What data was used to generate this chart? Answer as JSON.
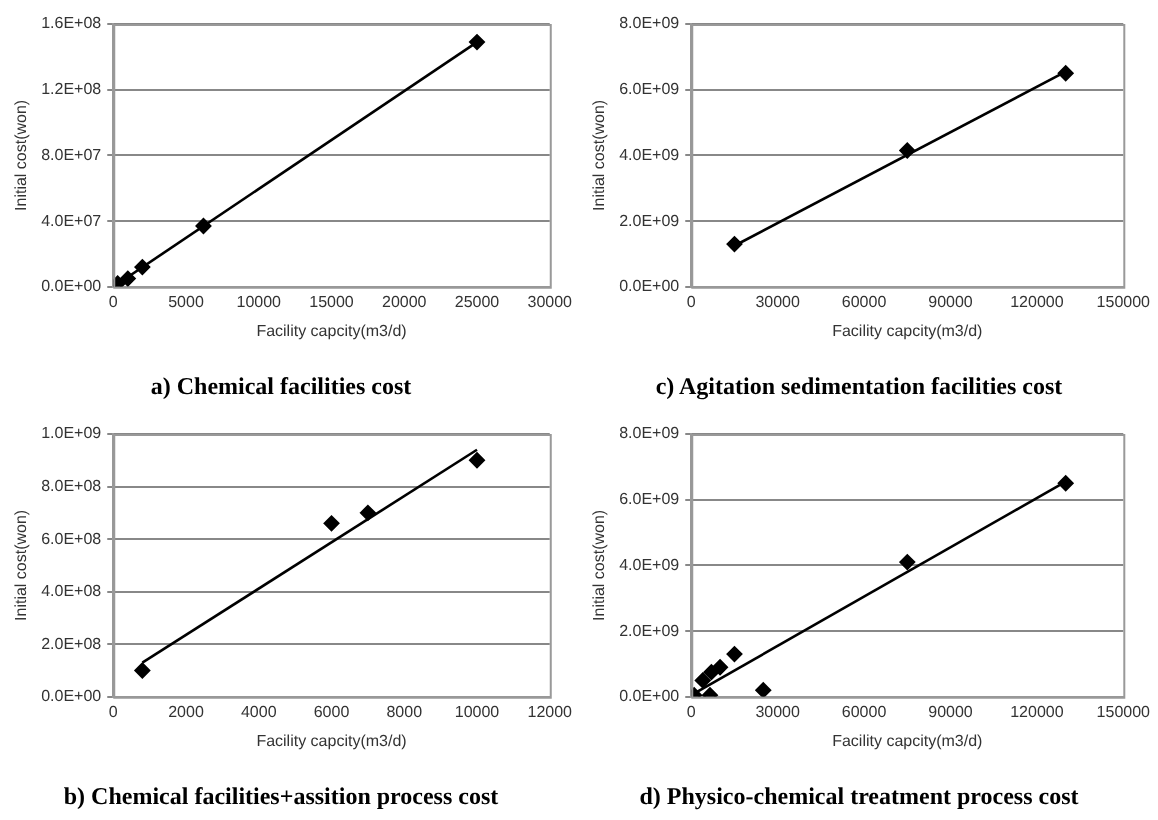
{
  "chart_data": [
    {
      "type": "scatter",
      "title": "a) Chemical facilities cost",
      "xlabel": "Facility capcity(m3/d)",
      "ylabel": "Initial cost(won)",
      "grid": "y",
      "legend": false,
      "marker": "diamond",
      "xlim": [
        0,
        30000
      ],
      "xticks": [
        0,
        5000,
        10000,
        15000,
        20000,
        25000,
        30000
      ],
      "ylim": [
        0,
        160000000
      ],
      "yticks": [
        {
          "value": 0,
          "label": "0.0E+00"
        },
        {
          "value": 40000000,
          "label": "4.0E+07"
        },
        {
          "value": 80000000,
          "label": "8.0E+07"
        },
        {
          "value": 120000000,
          "label": "1.2E+08"
        },
        {
          "value": 160000000,
          "label": "1.6E+08"
        }
      ],
      "series": [
        {
          "color": "#000000",
          "x": [
            300,
            1000,
            2000,
            6200,
            25000
          ],
          "values": [
            2000000,
            5000000,
            12000000,
            37000000,
            149000000
          ]
        },
        {
          "type": "line",
          "marker": "none",
          "color": "#000000",
          "x": [
            0,
            25000
          ],
          "values": [
            0,
            149000000
          ]
        }
      ]
    },
    {
      "type": "scatter",
      "title": "c) Agitation sedimentation facilities cost",
      "xlabel": "Facility capcity(m3/d)",
      "ylabel": "Initial cost(won)",
      "grid": "y",
      "legend": false,
      "marker": "diamond",
      "xlim": [
        0,
        150000
      ],
      "xticks": [
        0,
        30000,
        60000,
        90000,
        120000,
        150000
      ],
      "ylim": [
        0,
        8000000000
      ],
      "yticks": [
        {
          "value": 0,
          "label": "0.0E+00"
        },
        {
          "value": 2000000000,
          "label": "2.0E+09"
        },
        {
          "value": 4000000000,
          "label": "4.0E+09"
        },
        {
          "value": 6000000000,
          "label": "6.0E+09"
        },
        {
          "value": 8000000000,
          "label": "8.0E+09"
        }
      ],
      "series": [
        {
          "color": "#000000",
          "x": [
            15000,
            75000,
            130000
          ],
          "values": [
            1300000000,
            4150000000,
            6500000000
          ]
        },
        {
          "type": "line",
          "marker": "none",
          "color": "#000000",
          "x": [
            15000,
            130000
          ],
          "values": [
            1250000000,
            6550000000
          ]
        }
      ]
    },
    {
      "type": "scatter",
      "title": "b) Chemical facilities+assition process cost",
      "xlabel": "Facility capcity(m3/d)",
      "ylabel": "Initial cost(won)",
      "grid": "y",
      "legend": false,
      "marker": "diamond",
      "xlim": [
        0,
        12000
      ],
      "xticks": [
        0,
        2000,
        4000,
        6000,
        8000,
        10000,
        12000
      ],
      "ylim": [
        0,
        1000000000
      ],
      "yticks": [
        {
          "value": 0,
          "label": "0.0E+00"
        },
        {
          "value": 200000000,
          "label": "2.0E+08"
        },
        {
          "value": 400000000,
          "label": "4.0E+08"
        },
        {
          "value": 600000000,
          "label": "6.0E+08"
        },
        {
          "value": 800000000,
          "label": "8.0E+08"
        },
        {
          "value": 1000000000,
          "label": "1.0E+09"
        }
      ],
      "series": [
        {
          "color": "#000000",
          "x": [
            800,
            6000,
            7000,
            10000
          ],
          "values": [
            100000000,
            660000000,
            700000000,
            900000000
          ]
        },
        {
          "type": "line",
          "marker": "none",
          "color": "#000000",
          "x": [
            800,
            10000
          ],
          "values": [
            130000000,
            940000000
          ]
        }
      ]
    },
    {
      "type": "scatter",
      "title": "d) Physico-chemical treatment process cost",
      "xlabel": "Facility capcity(m3/d)",
      "ylabel": "Initial cost(won)",
      "grid": "y",
      "legend": false,
      "marker": "diamond",
      "xlim": [
        0,
        150000
      ],
      "xticks": [
        0,
        30000,
        60000,
        90000,
        120000,
        150000
      ],
      "ylim": [
        0,
        8000000000
      ],
      "yticks": [
        {
          "value": 0,
          "label": "0.0E+00"
        },
        {
          "value": 2000000000,
          "label": "2.0E+09"
        },
        {
          "value": 4000000000,
          "label": "4.0E+09"
        },
        {
          "value": 6000000000,
          "label": "6.0E+09"
        },
        {
          "value": 8000000000,
          "label": "8.0E+09"
        }
      ],
      "series": [
        {
          "color": "#000000",
          "x": [
            1000,
            4000,
            7000,
            10000,
            6500,
            15000,
            25000,
            75000,
            130000
          ],
          "values": [
            50000000,
            500000000,
            750000000,
            900000000,
            50000000,
            1300000000,
            200000000,
            4100000000,
            6500000000
          ]
        },
        {
          "type": "line",
          "marker": "none",
          "color": "#000000",
          "x": [
            2000,
            130000
          ],
          "values": [
            150000000,
            6550000000
          ]
        }
      ]
    }
  ]
}
